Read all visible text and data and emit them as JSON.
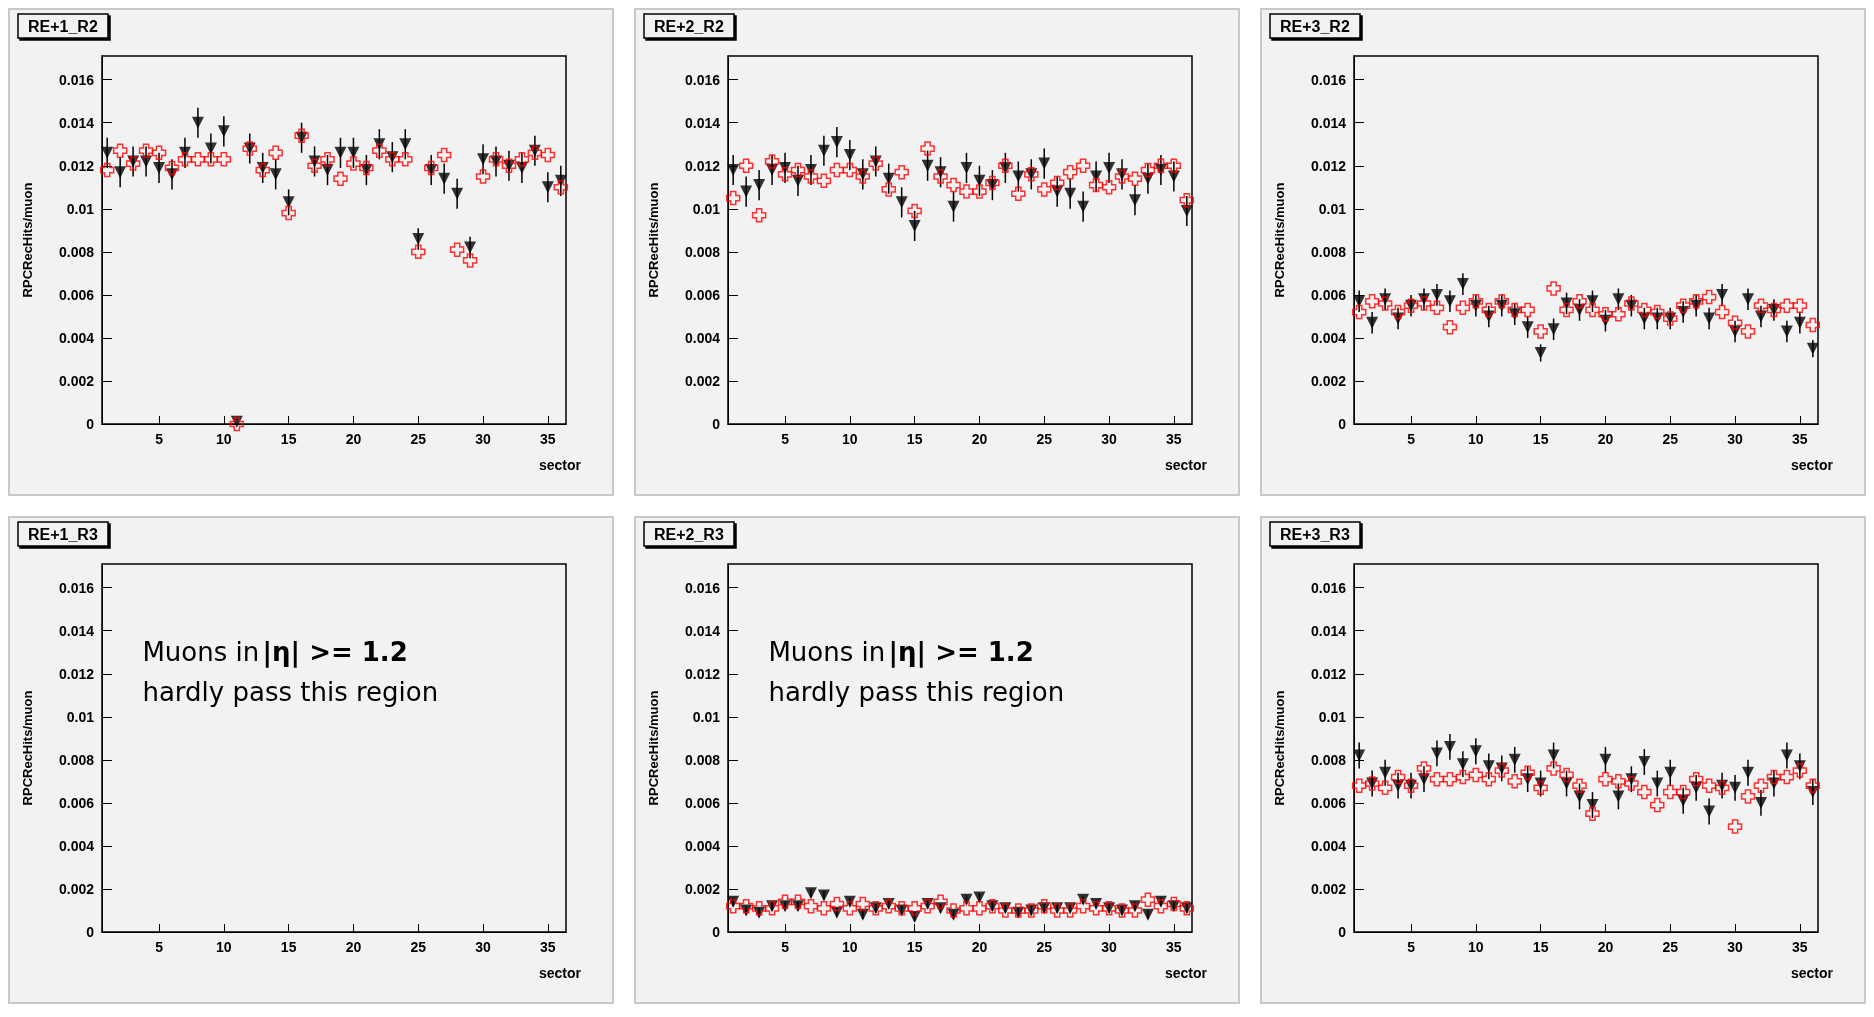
{
  "chart_data": [
    {
      "type": "scatter",
      "title": "RE+1_R2",
      "xlabel": "sector",
      "ylabel": "RPCRecHits/muon",
      "xlim": [
        0.6,
        36.4
      ],
      "xticks": [
        5,
        10,
        15,
        20,
        25,
        30,
        35
      ],
      "ylim": [
        0,
        0.0171
      ],
      "yticks": [
        0,
        0.002,
        0.004,
        0.006,
        0.008,
        0.01,
        0.012,
        0.014,
        0.016
      ],
      "x": [
        1,
        2,
        3,
        4,
        5,
        6,
        7,
        8,
        9,
        10,
        11,
        12,
        13,
        14,
        15,
        16,
        17,
        18,
        19,
        20,
        21,
        22,
        23,
        24,
        25,
        26,
        27,
        28,
        29,
        30,
        31,
        32,
        33,
        34,
        35,
        36
      ],
      "series": [
        {
          "color": "#000000",
          "marker": "triangle",
          "values": [
            0.0126,
            0.0117,
            0.0122,
            0.0122,
            0.0119,
            0.0116,
            0.0126,
            0.014,
            0.0128,
            0.0136,
            0.0001,
            0.0128,
            0.0119,
            0.0116,
            0.0103,
            0.0133,
            0.0122,
            0.0118,
            0.0126,
            0.0126,
            0.0118,
            0.013,
            0.0124,
            0.013,
            0.0086,
            0.0118,
            0.0114,
            0.0107,
            0.0082,
            0.0123,
            0.0122,
            0.012,
            0.0119,
            0.0127,
            0.011,
            0.0113
          ],
          "errors": [
            0.0007,
            0.0007,
            0.0007,
            0.0007,
            0.0007,
            0.0007,
            0.0007,
            0.0007,
            0.0007,
            0.0007,
            null,
            0.0007,
            0.0007,
            0.0007,
            0.0006,
            0.0007,
            0.0007,
            0.0007,
            0.0007,
            0.0007,
            0.0007,
            0.0007,
            0.0007,
            0.0007,
            0.0005,
            0.0007,
            0.0007,
            0.0007,
            0.0005,
            0.0007,
            0.0007,
            0.0007,
            0.0007,
            0.0007,
            0.0007,
            0.0007
          ]
        },
        {
          "color": "#ff0000",
          "marker": "cross",
          "values": [
            0.0118,
            0.0127,
            0.0121,
            0.0127,
            0.0126,
            0.0119,
            0.0123,
            0.0123,
            0.0123,
            0.0123,
            0.0,
            0.0128,
            0.0118,
            0.0126,
            0.0098,
            0.0134,
            0.012,
            0.0123,
            0.0114,
            0.0121,
            0.0119,
            0.0127,
            0.0123,
            0.0123,
            0.008,
            0.0119,
            0.0125,
            0.0081,
            0.0076,
            0.0115,
            0.0123,
            0.012,
            0.0123,
            0.0126,
            0.0125,
            0.011
          ]
        }
      ]
    },
    {
      "type": "scatter",
      "title": "RE+2_R2",
      "xlabel": "sector",
      "ylabel": "RPCRecHits/muon",
      "xlim": [
        0.6,
        36.4
      ],
      "xticks": [
        5,
        10,
        15,
        20,
        25,
        30,
        35
      ],
      "ylim": [
        0,
        0.0171
      ],
      "yticks": [
        0,
        0.002,
        0.004,
        0.006,
        0.008,
        0.01,
        0.012,
        0.014,
        0.016
      ],
      "x": [
        1,
        2,
        3,
        4,
        5,
        6,
        7,
        8,
        9,
        10,
        11,
        12,
        13,
        14,
        15,
        16,
        17,
        18,
        19,
        20,
        21,
        22,
        23,
        24,
        25,
        26,
        27,
        28,
        29,
        30,
        31,
        32,
        33,
        34,
        35,
        36
      ],
      "series": [
        {
          "color": "#000000",
          "marker": "triangle",
          "values": [
            0.0118,
            0.0108,
            0.0111,
            0.0118,
            0.0119,
            0.0113,
            0.0118,
            0.0127,
            0.0131,
            0.0125,
            0.0116,
            0.0122,
            0.0114,
            0.0103,
            0.0092,
            0.012,
            0.0117,
            0.0101,
            0.0119,
            0.0113,
            0.0111,
            0.0119,
            0.0115,
            0.0116,
            0.0121,
            0.0108,
            0.0107,
            0.0101,
            0.0115,
            0.0119,
            0.0116,
            0.0104,
            0.0114,
            0.0118,
            0.0115,
            0.0099
          ],
          "errors": [
            0.0007,
            0.0007,
            0.0007,
            0.0007,
            0.0007,
            0.0007,
            0.0007,
            0.0007,
            0.0007,
            0.0007,
            0.0007,
            0.0007,
            0.0007,
            0.0007,
            0.0007,
            0.0007,
            0.0007,
            0.0007,
            0.0007,
            0.0007,
            0.0007,
            0.0007,
            0.0007,
            0.0007,
            0.0007,
            0.0007,
            0.0007,
            0.0007,
            0.0007,
            0.0007,
            0.0007,
            0.0007,
            0.0007,
            0.0007,
            0.0007,
            0.0007
          ]
        },
        {
          "color": "#ff0000",
          "marker": "cross",
          "values": [
            0.0105,
            0.012,
            0.0097,
            0.0122,
            0.0116,
            0.0118,
            0.0115,
            0.0113,
            0.0118,
            0.0118,
            0.0115,
            0.0121,
            0.0109,
            0.0117,
            0.0099,
            0.0128,
            0.0115,
            0.0111,
            0.0108,
            0.0108,
            0.0112,
            0.012,
            0.0107,
            0.0116,
            0.0109,
            0.0112,
            0.0117,
            0.012,
            0.0111,
            0.011,
            0.0115,
            0.0114,
            0.0118,
            0.012,
            0.012,
            0.0104
          ]
        }
      ]
    },
    {
      "type": "scatter",
      "title": "RE+3_R2",
      "xlabel": "sector",
      "ylabel": "RPCRecHits/muon",
      "xlim": [
        0.6,
        36.4
      ],
      "xticks": [
        5,
        10,
        15,
        20,
        25,
        30,
        35
      ],
      "ylim": [
        0,
        0.0171
      ],
      "yticks": [
        0,
        0.002,
        0.004,
        0.006,
        0.008,
        0.01,
        0.012,
        0.014,
        0.016
      ],
      "x": [
        1,
        2,
        3,
        4,
        5,
        6,
        7,
        8,
        9,
        10,
        11,
        12,
        13,
        14,
        15,
        16,
        17,
        18,
        19,
        20,
        21,
        22,
        23,
        24,
        25,
        26,
        27,
        28,
        29,
        30,
        31,
        32,
        33,
        34,
        35,
        36
      ],
      "series": [
        {
          "color": "#000000",
          "marker": "triangle",
          "values": [
            0.0057,
            0.0047,
            0.0058,
            0.0049,
            0.0055,
            0.0058,
            0.006,
            0.0057,
            0.0065,
            0.0055,
            0.005,
            0.0055,
            0.0051,
            0.0045,
            0.0033,
            0.0044,
            0.0056,
            0.0053,
            0.0057,
            0.0048,
            0.0058,
            0.0055,
            0.0049,
            0.0049,
            0.0049,
            0.0052,
            0.0055,
            0.0049,
            0.006,
            0.0043,
            0.0058,
            0.005,
            0.0053,
            0.0043,
            0.0047,
            0.0035
          ],
          "errors": [
            0.0005,
            0.0005,
            0.0005,
            0.0005,
            0.0005,
            0.0005,
            0.0005,
            0.0005,
            0.0005,
            0.0005,
            0.0005,
            0.0005,
            0.0005,
            0.0005,
            0.0004,
            0.0005,
            0.0005,
            0.0005,
            0.0005,
            0.0005,
            0.0005,
            0.0005,
            0.0005,
            0.0005,
            0.0005,
            0.0005,
            0.0005,
            0.0005,
            0.0005,
            0.0005,
            0.0005,
            0.0005,
            0.0005,
            0.0005,
            0.0005,
            0.0004
          ]
        },
        {
          "color": "#ff0000",
          "marker": "cross",
          "values": [
            0.0052,
            0.0057,
            0.0056,
            0.0052,
            0.0055,
            0.0056,
            0.0054,
            0.0045,
            0.0054,
            0.0057,
            0.0053,
            0.0057,
            0.0053,
            0.0053,
            0.0043,
            0.0063,
            0.0053,
            0.0057,
            0.0053,
            0.0051,
            0.0051,
            0.0056,
            0.0053,
            0.0052,
            0.0049,
            0.0055,
            0.0057,
            0.0059,
            0.0052,
            0.0047,
            0.0043,
            0.0055,
            0.0053,
            0.0055,
            0.0055,
            0.0046
          ]
        }
      ]
    },
    {
      "type": "scatter",
      "title": "RE+1_R3",
      "ylabel": "RPCRecHits/muon",
      "xlabel": "sector",
      "xlim": [
        0.6,
        36.4
      ],
      "xticks": [
        5,
        10,
        15,
        20,
        25,
        30,
        35
      ],
      "ylim": [
        0,
        0.0171
      ],
      "yticks": [
        0,
        0.002,
        0.004,
        0.006,
        0.008,
        0.01,
        0.012,
        0.014,
        0.016
      ],
      "annotations": [
        "Muons in",
        "|η| >= 1.2",
        "hardly pass this region"
      ]
    },
    {
      "type": "scatter",
      "title": "RE+2_R3",
      "xlabel": "sector",
      "ylabel": "RPCRecHits/muon",
      "xlim": [
        0.6,
        36.4
      ],
      "xticks": [
        5,
        10,
        15,
        20,
        25,
        30,
        35
      ],
      "ylim": [
        0,
        0.0171
      ],
      "yticks": [
        0,
        0.002,
        0.004,
        0.006,
        0.008,
        0.01,
        0.012,
        0.014,
        0.016
      ],
      "annotations": [
        "Muons in",
        "|η| >= 1.2",
        "hardly pass this region"
      ],
      "x": [
        1,
        2,
        3,
        4,
        5,
        6,
        7,
        8,
        9,
        10,
        11,
        12,
        13,
        14,
        15,
        16,
        17,
        18,
        19,
        20,
        21,
        22,
        23,
        24,
        25,
        26,
        27,
        28,
        29,
        30,
        31,
        32,
        33,
        34,
        35,
        36
      ],
      "series": [
        {
          "color": "#000000",
          "marker": "triangle",
          "values": [
            0.0014,
            0.001,
            0.0009,
            0.0012,
            0.0012,
            0.0012,
            0.0018,
            0.0017,
            0.0009,
            0.0014,
            0.0008,
            0.0011,
            0.0013,
            0.001,
            0.0007,
            0.0013,
            0.0011,
            0.0008,
            0.0015,
            0.0016,
            0.0012,
            0.0011,
            0.0009,
            0.001,
            0.0011,
            0.0011,
            0.0011,
            0.0015,
            0.0013,
            0.0011,
            0.001,
            0.0012,
            0.0008,
            0.0014,
            0.0012,
            0.0011
          ],
          "errors": [
            0.0002,
            0.0002,
            0.0002,
            0.0002,
            0.0002,
            0.0002,
            0.0002,
            0.0002,
            0.0002,
            0.0002,
            0.0002,
            0.0002,
            0.0002,
            0.0002,
            0.0002,
            0.0002,
            0.0002,
            0.0002,
            0.0002,
            0.0002,
            0.0002,
            0.0002,
            0.0002,
            0.0002,
            0.0002,
            0.0002,
            0.0002,
            0.0002,
            0.0002,
            0.0002,
            0.0002,
            0.0002,
            0.0002,
            0.0002,
            0.0002,
            0.0002
          ]
        },
        {
          "color": "#ff0000",
          "marker": "cross",
          "values": [
            0.0012,
            0.0012,
            0.0011,
            0.0011,
            0.0014,
            0.0014,
            0.0012,
            0.0011,
            0.0013,
            0.0011,
            0.0013,
            0.0011,
            0.0012,
            0.0011,
            0.0011,
            0.0012,
            0.0014,
            0.001,
            0.0011,
            0.0011,
            0.0012,
            0.001,
            0.001,
            0.001,
            0.0012,
            0.001,
            0.001,
            0.0012,
            0.0011,
            0.0011,
            0.001,
            0.001,
            0.0015,
            0.0012,
            0.0013,
            0.0011
          ]
        }
      ]
    },
    {
      "type": "scatter",
      "title": "RE+3_R3",
      "xlabel": "sector",
      "ylabel": "RPCRecHits/muon",
      "xlim": [
        0.6,
        36.4
      ],
      "xticks": [
        5,
        10,
        15,
        20,
        25,
        30,
        35
      ],
      "ylim": [
        0,
        0.0171
      ],
      "yticks": [
        0,
        0.002,
        0.004,
        0.006,
        0.008,
        0.01,
        0.012,
        0.014,
        0.016
      ],
      "x": [
        1,
        2,
        3,
        4,
        5,
        6,
        7,
        8,
        9,
        10,
        11,
        12,
        13,
        14,
        15,
        16,
        17,
        18,
        19,
        20,
        21,
        22,
        23,
        24,
        25,
        26,
        27,
        28,
        29,
        30,
        31,
        32,
        33,
        34,
        35,
        36
      ],
      "series": [
        {
          "color": "#000000",
          "marker": "triangle",
          "values": [
            0.0082,
            0.0069,
            0.0074,
            0.0068,
            0.0068,
            0.0071,
            0.0083,
            0.0086,
            0.0078,
            0.0084,
            0.0077,
            0.0076,
            0.008,
            0.0071,
            0.0069,
            0.0082,
            0.0069,
            0.0063,
            0.0059,
            0.008,
            0.0063,
            0.0071,
            0.0079,
            0.0069,
            0.0074,
            0.0061,
            0.0067,
            0.0056,
            0.0068,
            0.0067,
            0.0074,
            0.006,
            0.0069,
            0.0082,
            0.0077,
            0.0065
          ],
          "errors": [
            0.0006,
            0.0006,
            0.0006,
            0.0006,
            0.0006,
            0.0006,
            0.0006,
            0.0006,
            0.0006,
            0.0006,
            0.0006,
            0.0006,
            0.0006,
            0.0006,
            0.0006,
            0.0006,
            0.0006,
            0.0006,
            0.0006,
            0.0006,
            0.0006,
            0.0006,
            0.0006,
            0.0006,
            0.0006,
            0.0006,
            0.0006,
            0.0006,
            0.0006,
            0.0006,
            0.0006,
            0.0006,
            0.0006,
            0.0006,
            0.0006,
            0.0006
          ]
        },
        {
          "color": "#ff0000",
          "marker": "cross",
          "values": [
            0.0068,
            0.0069,
            0.0067,
            0.0072,
            0.0068,
            0.0076,
            0.0071,
            0.0071,
            0.0072,
            0.0073,
            0.0071,
            0.0075,
            0.007,
            0.0074,
            0.0067,
            0.0076,
            0.0073,
            0.0068,
            0.0055,
            0.0071,
            0.007,
            0.0069,
            0.0065,
            0.0059,
            0.0065,
            0.0065,
            0.0071,
            0.0068,
            0.0067,
            0.0049,
            0.0063,
            0.0068,
            0.0072,
            0.0072,
            0.0075,
            0.0068
          ]
        }
      ]
    }
  ]
}
